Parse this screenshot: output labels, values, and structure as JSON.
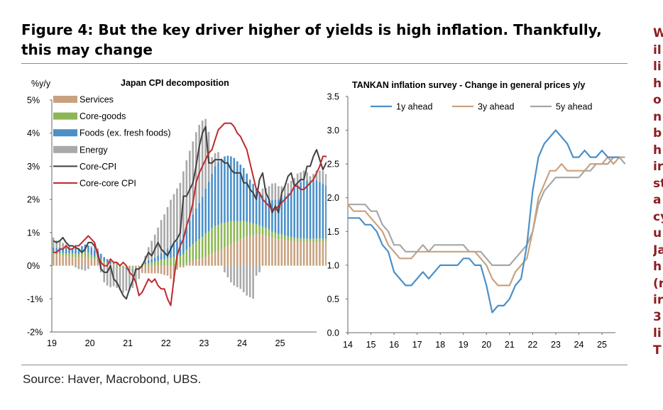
{
  "page": {
    "title": "Figure 4: But the key driver higher of yields is high inflation. Thankfully, this may change",
    "source": "Source: Haver, Macrobond, UBS.",
    "side_text": [
      "W",
      "il",
      "li",
      "h",
      "o",
      "n",
      "b",
      "h",
      "ir",
      "st",
      "a",
      "cy",
      "u",
      "Ja",
      "h",
      "(r",
      "ir",
      "3",
      "li",
      "T"
    ]
  },
  "colors": {
    "services": "#c8a27f",
    "core_goods": "#8db654",
    "foods": "#4a90c9",
    "energy": "#a9a9a9",
    "core_cpi": "#404040",
    "core_core_cpi": "#c0292d",
    "one_year": "#4a90c9",
    "three_year": "#c8a27f",
    "five_year": "#a6a6a6",
    "side_text": "#8c1d22"
  },
  "chart_data": [
    {
      "type": "bar",
      "stacked": true,
      "title": "Japan CPI decomposition",
      "ylabel": "%y/y",
      "ylim": [
        -2,
        5
      ],
      "yticks": [
        "-2%",
        "-1%",
        "0%",
        "1%",
        "2%",
        "3%",
        "4%",
        "5%"
      ],
      "xticks": [
        "19",
        "20",
        "21",
        "22",
        "23",
        "24",
        "25"
      ],
      "x_start": 2019.0,
      "frequency": "monthly",
      "legend": [
        "Services",
        "Core-goods",
        "Foods (ex. fresh foods)",
        "Energy",
        "Core-CPI",
        "Core-core CPI"
      ],
      "legend_position": "top-left",
      "series": [
        {
          "name": "Services",
          "values": [
            0.35,
            0.33,
            0.32,
            0.3,
            0.29,
            0.28,
            0.27,
            0.26,
            0.25,
            0.27,
            0.28,
            0.25,
            0.2,
            0.17,
            0.16,
            0.15,
            0.1,
            0.08,
            0.06,
            0.05,
            0.04,
            0.02,
            0.0,
            -0.02,
            -0.05,
            -0.08,
            -0.12,
            -0.2,
            -0.22,
            -0.23,
            -0.23,
            -0.23,
            -0.23,
            -0.23,
            -0.25,
            -0.28,
            -0.3,
            -0.4,
            -0.5,
            -0.12,
            -0.05,
            -0.05,
            0.08,
            0.12,
            0.15,
            0.18,
            0.2,
            0.23,
            0.28,
            0.32,
            0.38,
            0.42,
            0.45,
            0.5,
            0.55,
            0.6,
            0.65,
            0.7,
            0.75,
            0.8,
            0.85,
            0.88,
            0.9,
            0.92,
            0.95,
            0.95,
            0.93,
            0.92,
            0.9,
            0.85,
            0.82,
            0.8,
            0.8,
            0.78,
            0.77,
            0.75,
            0.75,
            0.73,
            0.72,
            0.72,
            0.72,
            0.7,
            0.72,
            0.72,
            0.72,
            0.72,
            0.72,
            0.72,
            0.72,
            0.72,
            0.72,
            0.72,
            0.72,
            0.72
          ]
        },
        {
          "name": "Core-goods",
          "values": [
            0.05,
            0.06,
            0.07,
            0.08,
            0.08,
            0.09,
            0.09,
            0.1,
            0.1,
            0.12,
            0.14,
            0.14,
            0.12,
            0.1,
            0.08,
            0.06,
            0.04,
            0.02,
            0.0,
            -0.02,
            -0.02,
            -0.04,
            -0.05,
            -0.05,
            -0.05,
            -0.05,
            -0.03,
            0.0,
            0.03,
            0.05,
            0.08,
            0.1,
            0.12,
            0.15,
            0.18,
            0.2,
            0.22,
            0.24,
            0.26,
            0.28,
            0.3,
            0.35,
            0.4,
            0.45,
            0.5,
            0.55,
            0.6,
            0.65,
            0.7,
            0.72,
            0.75,
            0.78,
            0.78,
            0.78,
            0.75,
            0.72,
            0.7,
            0.65,
            0.6,
            0.55,
            0.5,
            0.45,
            0.4,
            0.35,
            0.3,
            0.27,
            0.25,
            0.22,
            0.2,
            0.18,
            0.17,
            0.15,
            0.15,
            0.13,
            0.12,
            0.11,
            0.1,
            0.1,
            0.1,
            0.1,
            0.1,
            0.1,
            0.1,
            0.1,
            0.1,
            0.1,
            0.1,
            0.1,
            0.1,
            0.1,
            0.1,
            0.1,
            0.1,
            0.1
          ]
        },
        {
          "name": "Foods (ex. fresh foods)",
          "values": [
            0.15,
            0.15,
            0.16,
            0.16,
            0.17,
            0.18,
            0.17,
            0.17,
            0.17,
            0.2,
            0.22,
            0.22,
            0.22,
            0.2,
            0.18,
            0.15,
            0.12,
            0.1,
            0.08,
            0.05,
            0.03,
            0.0,
            -0.02,
            -0.04,
            -0.05,
            -0.04,
            -0.02,
            0.0,
            0.02,
            0.05,
            0.08,
            0.1,
            0.12,
            0.15,
            0.2,
            0.25,
            0.3,
            0.35,
            0.4,
            0.45,
            0.5,
            0.6,
            0.7,
            0.8,
            0.9,
            1.0,
            1.1,
            1.2,
            1.35,
            1.5,
            1.65,
            1.8,
            1.9,
            1.95,
            2.0,
            2.0,
            1.95,
            1.9,
            1.8,
            1.7,
            1.6,
            1.45,
            1.3,
            1.2,
            1.1,
            1.0,
            0.95,
            0.9,
            0.9,
            0.95,
            1.0,
            1.05,
            1.1,
            1.2,
            1.3,
            1.4,
            1.5,
            1.6,
            1.7,
            1.75,
            1.75,
            1.75,
            1.75,
            1.75,
            1.7,
            1.65,
            1.6,
            1.55,
            1.5,
            1.45,
            1.4,
            1.35,
            1.3,
            1.25
          ]
        },
        {
          "name": "Energy",
          "values": [
            0.3,
            0.22,
            0.2,
            0.15,
            0.1,
            0.05,
            0.0,
            -0.05,
            -0.1,
            -0.12,
            -0.15,
            -0.1,
            0.05,
            0.15,
            0.1,
            -0.2,
            -0.5,
            -0.6,
            -0.65,
            -0.6,
            -0.65,
            -0.7,
            -0.75,
            -0.65,
            -0.6,
            -0.5,
            -0.35,
            -0.2,
            0.0,
            0.2,
            0.4,
            0.55,
            0.7,
            0.85,
            1.0,
            1.1,
            1.25,
            1.4,
            1.5,
            1.6,
            1.7,
            1.9,
            2.0,
            2.1,
            2.2,
            2.3,
            2.35,
            2.3,
            2.1,
            1.5,
            0.5,
            0.4,
            0.3,
            0.0,
            -0.2,
            -0.35,
            -0.5,
            -0.6,
            -0.65,
            -0.7,
            -0.8,
            -0.9,
            -0.95,
            -1.0,
            -0.3,
            -0.2,
            0.2,
            0.3,
            0.4,
            0.5,
            0.5,
            0.4,
            0.35,
            0.3,
            0.3,
            0.3,
            0.3,
            0.35,
            0.3,
            0.3,
            0.25,
            0.15,
            0.2,
            0.3,
            0.35,
            0.4,
            0.35,
            0.3,
            0.25,
            0.2,
            0.1,
            0.0,
            -0.1,
            -0.25
          ]
        },
        {
          "name": "Core-CPI",
          "kind": "line",
          "values": [
            0.75,
            0.7,
            0.75,
            0.85,
            0.7,
            0.6,
            0.6,
            0.55,
            0.5,
            0.4,
            0.5,
            0.7,
            0.7,
            0.6,
            0.4,
            -0.1,
            -0.2,
            -0.2,
            0.0,
            -0.4,
            -0.5,
            -0.7,
            -0.9,
            -1.0,
            -0.7,
            -0.45,
            -0.1,
            -0.1,
            0.0,
            0.2,
            0.4,
            0.3,
            0.5,
            0.7,
            0.5,
            0.4,
            0.3,
            0.5,
            0.7,
            0.8,
            1.0,
            2.1,
            2.1,
            2.3,
            2.5,
            3.0,
            3.6,
            4.0,
            4.2,
            3.1,
            3.1,
            3.2,
            3.2,
            3.2,
            3.1,
            3.1,
            2.9,
            2.8,
            2.8,
            2.8,
            2.5,
            2.5,
            2.3,
            2.2,
            2.0,
            2.6,
            2.8,
            2.2,
            2.0,
            1.6,
            1.8,
            1.6,
            2.2,
            2.4,
            2.7,
            2.8,
            2.4,
            2.5,
            2.6,
            2.6,
            3.0,
            3.0,
            3.3,
            3.5,
            3.2,
            2.9,
            3.1,
            3.2,
            3.0,
            2.9,
            3.0,
            2.9,
            2.8,
            2.4
          ]
        },
        {
          "name": "Core-core CPI",
          "kind": "line",
          "values": [
            0.4,
            0.4,
            0.5,
            0.5,
            0.6,
            0.5,
            0.5,
            0.6,
            0.6,
            0.7,
            0.8,
            0.9,
            0.8,
            0.7,
            0.3,
            0.1,
            0.0,
            0.0,
            0.2,
            0.1,
            0.1,
            0.0,
            0.1,
            0.0,
            -0.2,
            -0.3,
            -0.5,
            -0.9,
            -0.8,
            -0.6,
            -0.4,
            -0.5,
            -0.4,
            -0.6,
            -0.7,
            -0.7,
            -1.0,
            -1.2,
            -0.4,
            0.3,
            0.6,
            0.8,
            1.2,
            1.5,
            1.9,
            2.5,
            2.8,
            3.0,
            3.2,
            3.4,
            3.5,
            3.8,
            4.1,
            4.2,
            4.3,
            4.3,
            4.3,
            4.2,
            4.0,
            3.9,
            3.7,
            3.5,
            3.1,
            2.7,
            2.3,
            2.2,
            2.0,
            1.9,
            1.8,
            1.7,
            1.7,
            1.8,
            1.9,
            2.0,
            2.1,
            2.2,
            2.4,
            2.4,
            2.3,
            2.3,
            2.4,
            2.5,
            2.6,
            2.8,
            3.0,
            3.3,
            3.3,
            3.2,
            3.1,
            3.0,
            2.9,
            2.9,
            2.9,
            2.8
          ]
        }
      ]
    },
    {
      "type": "line",
      "title": "TANKAN inflation survey - Change in general prices y/y",
      "ylim": [
        0,
        3.5
      ],
      "yticks": [
        "0.0",
        "0.5",
        "1.0",
        "1.5",
        "2.0",
        "2.5",
        "3.0",
        "3.5"
      ],
      "xticks": [
        "14",
        "15",
        "16",
        "17",
        "18",
        "19",
        "20",
        "21",
        "22",
        "23",
        "24",
        "25"
      ],
      "x_start": 2014.0,
      "frequency": "quarterly",
      "legend": [
        "1y ahead",
        "3y ahead",
        "5y ahead"
      ],
      "legend_position": "top",
      "series": [
        {
          "name": "1y ahead",
          "values": [
            1.7,
            1.7,
            1.7,
            1.6,
            1.6,
            1.5,
            1.3,
            1.2,
            0.9,
            0.8,
            0.7,
            0.7,
            0.8,
            0.9,
            0.8,
            0.9,
            1.0,
            1.0,
            1.0,
            1.0,
            1.1,
            1.1,
            1.0,
            1.0,
            0.7,
            0.3,
            0.4,
            0.4,
            0.5,
            0.7,
            0.8,
            1.3,
            2.1,
            2.6,
            2.8,
            2.9,
            3.0,
            2.9,
            2.8,
            2.6,
            2.6,
            2.7,
            2.6,
            2.6,
            2.7,
            2.6,
            2.6,
            2.6
          ]
        },
        {
          "name": "3y ahead",
          "values": [
            1.9,
            1.8,
            1.8,
            1.8,
            1.7,
            1.6,
            1.5,
            1.3,
            1.2,
            1.1,
            1.1,
            1.1,
            1.2,
            1.2,
            1.2,
            1.2,
            1.2,
            1.2,
            1.2,
            1.2,
            1.2,
            1.2,
            1.2,
            1.1,
            1.0,
            0.8,
            0.7,
            0.7,
            0.7,
            0.9,
            1.0,
            1.1,
            1.5,
            2.0,
            2.2,
            2.4,
            2.4,
            2.5,
            2.4,
            2.4,
            2.4,
            2.4,
            2.5,
            2.5,
            2.5,
            2.6,
            2.5,
            2.6,
            2.6
          ]
        },
        {
          "name": "5y ahead",
          "values": [
            1.9,
            1.9,
            1.9,
            1.9,
            1.8,
            1.8,
            1.6,
            1.5,
            1.3,
            1.3,
            1.2,
            1.2,
            1.2,
            1.3,
            1.2,
            1.3,
            1.3,
            1.3,
            1.3,
            1.3,
            1.3,
            1.2,
            1.2,
            1.2,
            1.1,
            1.0,
            1.0,
            1.0,
            1.0,
            1.1,
            1.2,
            1.3,
            1.5,
            1.9,
            2.1,
            2.2,
            2.3,
            2.3,
            2.3,
            2.3,
            2.3,
            2.4,
            2.4,
            2.5,
            2.5,
            2.5,
            2.6,
            2.6,
            2.5
          ]
        }
      ]
    }
  ]
}
